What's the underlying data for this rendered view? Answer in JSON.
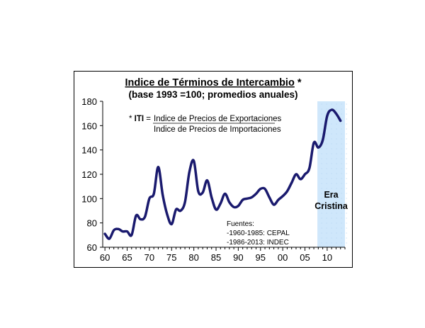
{
  "chart_data": {
    "type": "line",
    "title": "Indice de Términos de Intercambio",
    "title_suffix": "*",
    "subtitle": "(base 1993 =100; promedios anuales)",
    "formula": {
      "prefix": "*",
      "lhs": "ITI",
      "eq": "=",
      "numerator": "Indice de Precios de Exportaciones",
      "denominator": "Indice de Precios de Importaciones"
    },
    "sources": {
      "heading": "Fuentes:",
      "lines": [
        "-1960-1985: CEPAL",
        "-1986-2013: INDEC"
      ]
    },
    "shaded_region": {
      "label_lines": [
        "Era",
        "Cristina"
      ],
      "x_start": 2007.8,
      "x_end": 2014
    },
    "xlim": [
      1959.5,
      2014
    ],
    "ylim": [
      60,
      180
    ],
    "x_ticks": [
      1960,
      1965,
      1970,
      1975,
      1980,
      1985,
      1990,
      1995,
      2000,
      2005,
      2010
    ],
    "x_tick_labels": [
      "60",
      "65",
      "70",
      "75",
      "80",
      "85",
      "90",
      "95",
      "00",
      "05",
      "10"
    ],
    "y_ticks": [
      60,
      80,
      100,
      120,
      140,
      160,
      180
    ],
    "y_tick_labels": [
      "60",
      "80",
      "100",
      "120",
      "140",
      "160",
      "180"
    ],
    "series": [
      {
        "color": "#1a1a6e",
        "x": [
          1960,
          1961,
          1962,
          1963,
          1964,
          1965,
          1966,
          1967,
          1968,
          1969,
          1970,
          1971,
          1972,
          1973,
          1974,
          1975,
          1976,
          1977,
          1978,
          1979,
          1980,
          1981,
          1982,
          1983,
          1984,
          1985,
          1986,
          1987,
          1988,
          1989,
          1990,
          1991,
          1992,
          1993,
          1994,
          1995,
          1996,
          1997,
          1998,
          1999,
          2000,
          2001,
          2002,
          2003,
          2004,
          2005,
          2006,
          2007,
          2008,
          2009,
          2010,
          2011,
          2012,
          2013
        ],
        "values": [
          71,
          67,
          74,
          75,
          73,
          73,
          70,
          86,
          83,
          85,
          100,
          104,
          126,
          103,
          87,
          79,
          91,
          90,
          97,
          122,
          131,
          106,
          105,
          115,
          101,
          91,
          96,
          104,
          97,
          93,
          94,
          99,
          100,
          101,
          104,
          108,
          108,
          101,
          95,
          99,
          102,
          106,
          113,
          120,
          116,
          120,
          125,
          146,
          142,
          148,
          168,
          173,
          170,
          164
        ]
      }
    ]
  }
}
